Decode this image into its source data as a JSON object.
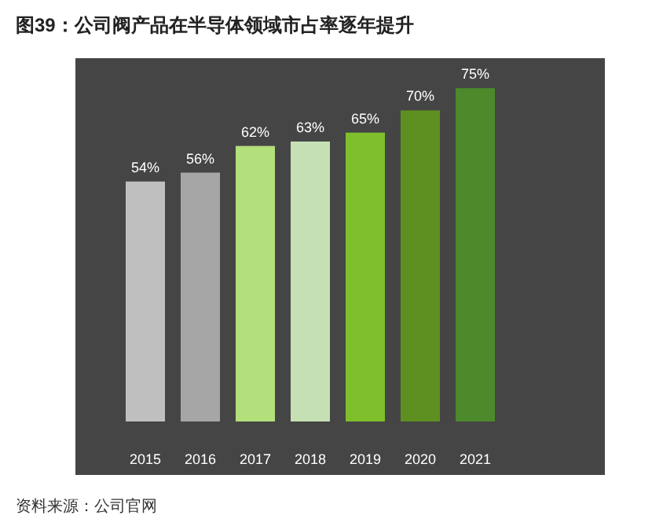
{
  "chart_data": {
    "type": "bar",
    "title": "图39：公司阀产品在半导体领域市占率逐年提升",
    "categories": [
      "2015",
      "2016",
      "2017",
      "2018",
      "2019",
      "2020",
      "2021"
    ],
    "values": [
      54,
      56,
      62,
      63,
      65,
      70,
      75
    ],
    "colors": [
      "#bfbfbf",
      "#a6a6a6",
      "#b4e07c",
      "#c5e0b4",
      "#7fbf2c",
      "#5e9020",
      "#4c8a2c"
    ],
    "value_labels": [
      "54%",
      "56%",
      "62%",
      "63%",
      "65%",
      "70%",
      "75%"
    ],
    "annotations": [
      "资料来源：公司官网"
    ]
  }
}
